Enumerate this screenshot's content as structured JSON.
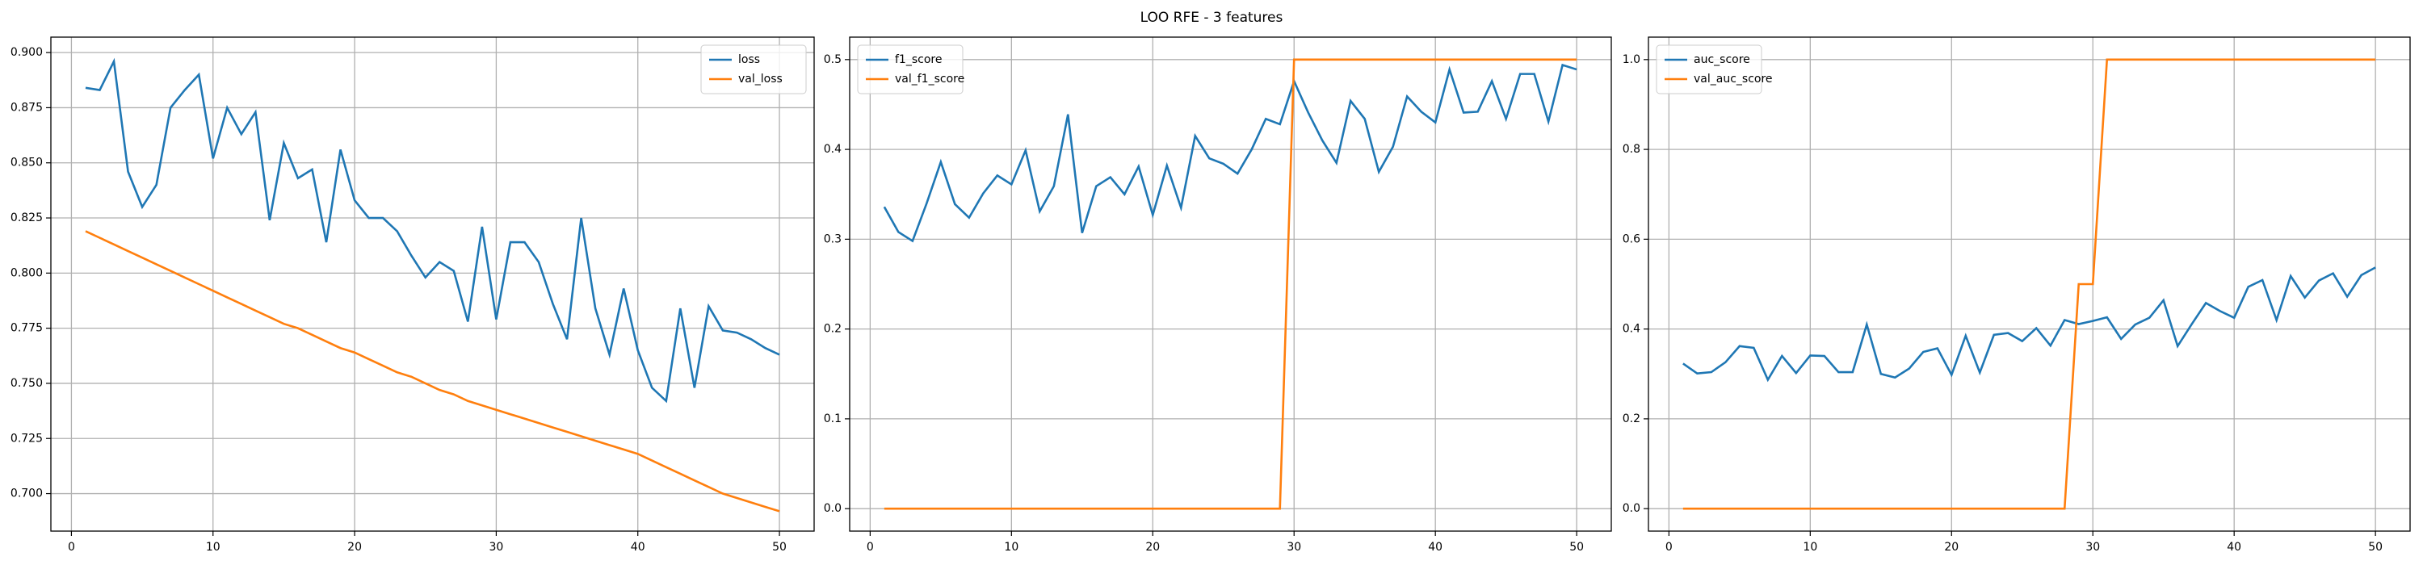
{
  "title": "LOO RFE - 3 features",
  "chart_data": [
    {
      "type": "line",
      "legend": "upper right",
      "grid": true,
      "x": [
        1,
        2,
        3,
        4,
        5,
        6,
        7,
        8,
        9,
        10,
        11,
        12,
        13,
        14,
        15,
        16,
        17,
        18,
        19,
        20,
        21,
        22,
        23,
        24,
        25,
        26,
        27,
        28,
        29,
        30,
        31,
        32,
        33,
        34,
        35,
        36,
        37,
        38,
        39,
        40,
        41,
        42,
        43,
        44,
        45,
        46,
        47,
        48,
        49,
        50
      ],
      "xlim": [
        -1.45,
        52.45
      ],
      "xticks": [
        0,
        10,
        20,
        30,
        40,
        50
      ],
      "ylim": [
        0.683,
        0.907
      ],
      "yticks": [
        {
          "value": 0.7,
          "label": "0.700"
        },
        {
          "value": 0.725,
          "label": "0.725"
        },
        {
          "value": 0.75,
          "label": "0.750"
        },
        {
          "value": 0.775,
          "label": "0.775"
        },
        {
          "value": 0.8,
          "label": "0.800"
        },
        {
          "value": 0.825,
          "label": "0.825"
        },
        {
          "value": 0.85,
          "label": "0.850"
        },
        {
          "value": 0.875,
          "label": "0.875"
        },
        {
          "value": 0.9,
          "label": "0.900"
        }
      ],
      "series": [
        {
          "name": "loss",
          "color": "#1f77b4",
          "values": [
            0.884,
            0.883,
            0.896,
            0.846,
            0.83,
            0.84,
            0.875,
            0.883,
            0.89,
            0.852,
            0.875,
            0.863,
            0.873,
            0.824,
            0.859,
            0.843,
            0.847,
            0.814,
            0.856,
            0.833,
            0.825,
            0.825,
            0.819,
            0.808,
            0.798,
            0.805,
            0.801,
            0.778,
            0.821,
            0.779,
            0.814,
            0.814,
            0.805,
            0.786,
            0.77,
            0.825,
            0.784,
            0.763,
            0.793,
            0.765,
            0.748,
            0.742,
            0.784,
            0.748,
            0.785,
            0.774,
            0.773,
            0.77,
            0.766,
            0.763
          ]
        },
        {
          "name": "val_loss",
          "color": "#ff7f0e",
          "values": [
            0.819,
            0.816,
            0.813,
            0.81,
            0.807,
            0.804,
            0.801,
            0.798,
            0.795,
            0.792,
            0.789,
            0.786,
            0.783,
            0.78,
            0.777,
            0.775,
            0.772,
            0.769,
            0.766,
            0.764,
            0.761,
            0.758,
            0.755,
            0.753,
            0.75,
            0.747,
            0.745,
            0.742,
            0.74,
            0.738,
            0.736,
            0.734,
            0.732,
            0.73,
            0.728,
            0.726,
            0.724,
            0.722,
            0.72,
            0.718,
            0.715,
            0.712,
            0.709,
            0.706,
            0.703,
            0.7,
            0.698,
            0.696,
            0.694,
            0.692
          ]
        }
      ]
    },
    {
      "type": "line",
      "legend": "upper left",
      "grid": true,
      "x": [
        1,
        2,
        3,
        4,
        5,
        6,
        7,
        8,
        9,
        10,
        11,
        12,
        13,
        14,
        15,
        16,
        17,
        18,
        19,
        20,
        21,
        22,
        23,
        24,
        25,
        26,
        27,
        28,
        29,
        30,
        31,
        32,
        33,
        34,
        35,
        36,
        37,
        38,
        39,
        40,
        41,
        42,
        43,
        44,
        45,
        46,
        47,
        48,
        49,
        50
      ],
      "xlim": [
        -1.45,
        52.45
      ],
      "xticks": [
        0,
        10,
        20,
        30,
        40,
        50
      ],
      "ylim": [
        -0.025,
        0.525
      ],
      "yticks": [
        {
          "value": 0,
          "label": "0.0"
        },
        {
          "value": 0.1,
          "label": "0.1"
        },
        {
          "value": 0.2,
          "label": "0.2"
        },
        {
          "value": 0.3,
          "label": "0.3"
        },
        {
          "value": 0.4,
          "label": "0.4"
        },
        {
          "value": 0.5,
          "label": "0.5"
        }
      ],
      "series": [
        {
          "name": "f1_score",
          "color": "#1f77b4",
          "values": [
            0.336,
            0.308,
            0.298,
            0.34,
            0.386,
            0.339,
            0.324,
            0.351,
            0.371,
            0.361,
            0.399,
            0.331,
            0.359,
            0.439,
            0.307,
            0.359,
            0.369,
            0.35,
            0.381,
            0.327,
            0.382,
            0.335,
            0.415,
            0.39,
            0.384,
            0.373,
            0.4,
            0.434,
            0.428,
            0.476,
            0.441,
            0.41,
            0.385,
            0.454,
            0.434,
            0.375,
            0.403,
            0.459,
            0.442,
            0.43,
            0.489,
            0.441,
            0.442,
            0.476,
            0.434,
            0.484,
            0.484,
            0.431,
            0.494,
            0.489
          ]
        },
        {
          "name": "val_f1_score",
          "color": "#ff7f0e",
          "values": [
            0,
            0,
            0,
            0,
            0,
            0,
            0,
            0,
            0,
            0,
            0,
            0,
            0,
            0,
            0,
            0,
            0,
            0,
            0,
            0,
            0,
            0,
            0,
            0,
            0,
            0,
            0,
            0,
            0,
            0.5,
            0.5,
            0.5,
            0.5,
            0.5,
            0.5,
            0.5,
            0.5,
            0.5,
            0.5,
            0.5,
            0.5,
            0.5,
            0.5,
            0.5,
            0.5,
            0.5,
            0.5,
            0.5,
            0.5,
            0.5
          ]
        }
      ]
    },
    {
      "type": "line",
      "legend": "upper left",
      "grid": true,
      "x": [
        1,
        2,
        3,
        4,
        5,
        6,
        7,
        8,
        9,
        10,
        11,
        12,
        13,
        14,
        15,
        16,
        17,
        18,
        19,
        20,
        21,
        22,
        23,
        24,
        25,
        26,
        27,
        28,
        29,
        30,
        31,
        32,
        33,
        34,
        35,
        36,
        37,
        38,
        39,
        40,
        41,
        42,
        43,
        44,
        45,
        46,
        47,
        48,
        49,
        50
      ],
      "xlim": [
        -1.45,
        52.45
      ],
      "xticks": [
        0,
        10,
        20,
        30,
        40,
        50
      ],
      "ylim": [
        -0.05,
        1.05
      ],
      "yticks": [
        {
          "value": 0,
          "label": "0.0"
        },
        {
          "value": 0.2,
          "label": "0.2"
        },
        {
          "value": 0.4,
          "label": "0.4"
        },
        {
          "value": 0.6,
          "label": "0.6"
        },
        {
          "value": 0.8,
          "label": "0.8"
        },
        {
          "value": 1,
          "label": "1.0"
        }
      ],
      "series": [
        {
          "name": "auc_score",
          "color": "#1f77b4",
          "values": [
            0.323,
            0.301,
            0.304,
            0.326,
            0.362,
            0.358,
            0.287,
            0.34,
            0.302,
            0.341,
            0.34,
            0.304,
            0.304,
            0.41,
            0.3,
            0.292,
            0.312,
            0.349,
            0.357,
            0.298,
            0.385,
            0.303,
            0.387,
            0.391,
            0.373,
            0.402,
            0.363,
            0.42,
            0.411,
            0.418,
            0.426,
            0.378,
            0.41,
            0.425,
            0.464,
            0.362,
            0.411,
            0.458,
            0.44,
            0.425,
            0.494,
            0.509,
            0.42,
            0.518,
            0.47,
            0.508,
            0.524,
            0.472,
            0.52,
            0.537
          ]
        },
        {
          "name": "val_auc_score",
          "color": "#ff7f0e",
          "values": [
            0,
            0,
            0,
            0,
            0,
            0,
            0,
            0,
            0,
            0,
            0,
            0,
            0,
            0,
            0,
            0,
            0,
            0,
            0,
            0,
            0,
            0,
            0,
            0,
            0,
            0,
            0,
            0,
            0.5,
            0.5,
            1,
            1,
            1,
            1,
            1,
            1,
            1,
            1,
            1,
            1,
            1,
            1,
            1,
            1,
            1,
            1,
            1,
            1,
            1,
            1
          ]
        }
      ]
    }
  ]
}
